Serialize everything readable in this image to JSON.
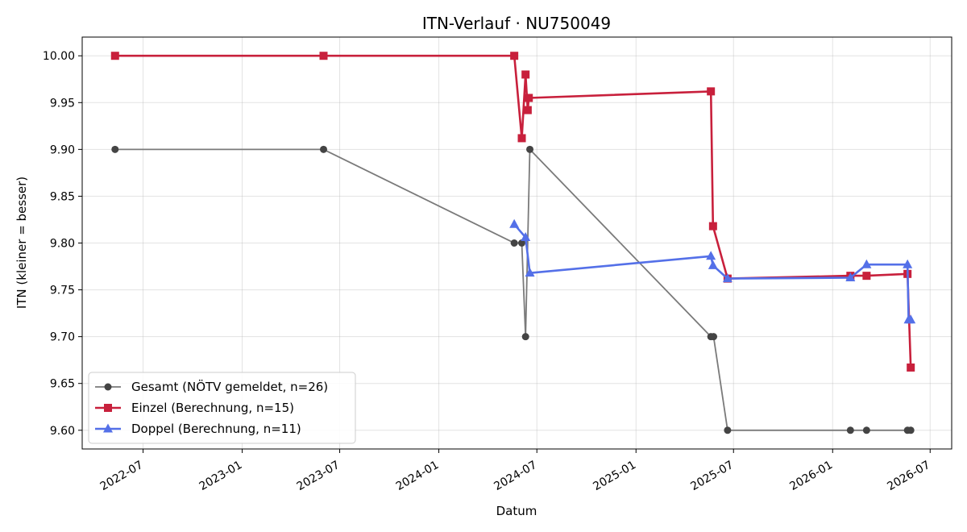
{
  "chart_data": {
    "type": "line",
    "title": "ITN-Verlauf · NU750049",
    "xlabel": "Datum",
    "ylabel": "ITN  (kleiner = besser)",
    "xlim": [
      "2022-03-10",
      "2026-08-10"
    ],
    "ylim": [
      9.58,
      10.02
    ],
    "x_ticks": [
      "2022-07-01",
      "2023-01-01",
      "2023-07-01",
      "2024-01-01",
      "2024-07-01",
      "2025-01-01",
      "2025-07-01",
      "2026-01-01",
      "2026-07-01"
    ],
    "x_tick_labels": [
      "2022-07",
      "2023-01",
      "2023-07",
      "2024-01",
      "2024-07",
      "2025-01",
      "2025-07",
      "2026-01",
      "2026-07"
    ],
    "y_ticks": [
      9.6,
      9.65,
      9.7,
      9.75,
      9.8,
      9.85,
      9.9,
      9.95,
      10.0
    ],
    "y_tick_labels": [
      "9.60",
      "9.65",
      "9.70",
      "9.75",
      "9.80",
      "9.85",
      "9.90",
      "9.95",
      "10.00"
    ],
    "grid": true,
    "legend_position": "bottom-left",
    "series": [
      {
        "name": "Gesamt (NÖTV gemeldet, n=26)",
        "color": "#7a7a7a",
        "marker_color": "#444444",
        "marker": "circle",
        "points": [
          [
            "2022-05-10",
            9.9
          ],
          [
            "2023-06-01",
            9.9
          ],
          [
            "2024-05-20",
            9.8
          ],
          [
            "2024-06-03",
            9.8
          ],
          [
            "2024-06-10",
            9.7
          ],
          [
            "2024-06-18",
            9.9
          ],
          [
            "2025-05-20",
            9.7
          ],
          [
            "2025-05-25",
            9.7
          ],
          [
            "2025-06-20",
            9.6
          ],
          [
            "2026-02-03",
            9.6
          ],
          [
            "2026-03-05",
            9.6
          ],
          [
            "2026-05-20",
            9.6
          ],
          [
            "2026-05-26",
            9.6
          ]
        ]
      },
      {
        "name": "Einzel (Berechnung, n=15)",
        "color": "#c8203c",
        "marker": "square",
        "points": [
          [
            "2022-05-10",
            10.0
          ],
          [
            "2023-06-01",
            10.0
          ],
          [
            "2024-05-20",
            10.0
          ],
          [
            "2024-06-03",
            9.912
          ],
          [
            "2024-06-10",
            9.98
          ],
          [
            "2024-06-14",
            9.942
          ],
          [
            "2024-06-16",
            9.955
          ],
          [
            "2025-05-20",
            9.962
          ],
          [
            "2025-05-24",
            9.818
          ],
          [
            "2025-06-20",
            9.762
          ],
          [
            "2026-02-03",
            9.765
          ],
          [
            "2026-03-05",
            9.765
          ],
          [
            "2026-05-20",
            9.767
          ],
          [
            "2026-05-26",
            9.667
          ]
        ]
      },
      {
        "name": "Doppel (Berechnung, n=11)",
        "color": "#5470e8",
        "marker": "triangle",
        "points": [
          [
            "2024-05-20",
            9.82
          ],
          [
            "2024-06-10",
            9.806
          ],
          [
            "2024-06-18",
            9.768
          ],
          [
            "2025-05-20",
            9.786
          ],
          [
            "2025-05-24",
            9.776
          ],
          [
            "2025-06-20",
            9.762
          ],
          [
            "2026-02-03",
            9.763
          ],
          [
            "2026-03-05",
            9.777
          ],
          [
            "2026-05-20",
            9.777
          ],
          [
            "2026-05-22",
            9.718
          ],
          [
            "2026-05-26",
            9.718
          ]
        ]
      }
    ]
  }
}
